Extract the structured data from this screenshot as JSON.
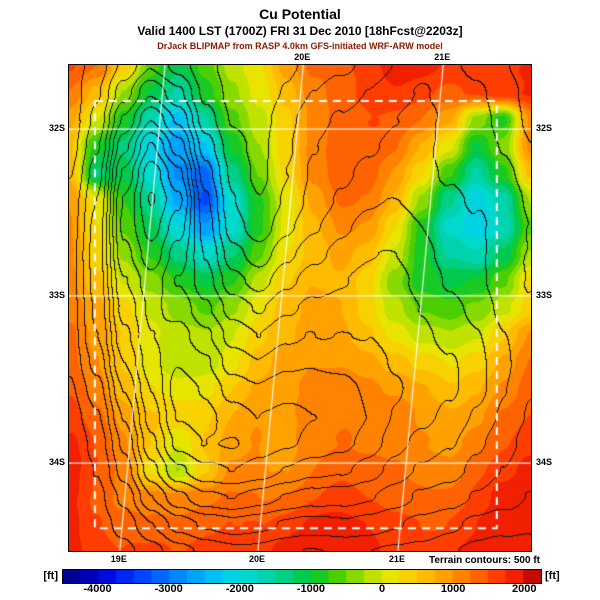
{
  "title": {
    "main": "Cu Potential",
    "line2": "Valid 1400 LST (1700Z) FRI 31 Dec 2010 [18hFcst@2203z]",
    "line3": "DrJack BLIPMAP from RASP 4.0km GFS-initiated WRF-ARW model"
  },
  "axes": {
    "left": [
      {
        "label": "32S",
        "f": 0.132
      },
      {
        "label": "33S",
        "f": 0.475
      },
      {
        "label": "34S",
        "f": 0.819
      }
    ],
    "right": [
      {
        "label": "32S",
        "f": 0.132
      },
      {
        "label": "33S",
        "f": 0.475
      },
      {
        "label": "34S",
        "f": 0.819
      }
    ],
    "top": [
      {
        "label": "20E",
        "f": 0.507
      },
      {
        "label": "21E",
        "f": 0.81
      }
    ],
    "bottom": [
      {
        "label": "19E",
        "f": 0.11
      },
      {
        "label": "20E",
        "f": 0.409
      },
      {
        "label": "21E",
        "f": 0.712
      }
    ]
  },
  "colorbar": {
    "unit_left": "[ft]",
    "unit_right": "[ft]",
    "note": "Terrain contours: 500 ft",
    "min": -4500,
    "max": 2250,
    "step": 250,
    "ticks": [
      -4000,
      -3000,
      -2000,
      -1000,
      0,
      1000,
      2000
    ]
  },
  "chart_data": {
    "type": "heatmap",
    "title": "Cu Potential",
    "units": "ft",
    "value_range": [
      -4500,
      2250
    ],
    "contour_fill_step": 250,
    "terrain_contour_interval_ft": 500,
    "x_axis": {
      "top_ticks": [
        "20E",
        "21E"
      ],
      "bottom_ticks": [
        "19E",
        "20E",
        "21E"
      ]
    },
    "y_axis": {
      "left_ticks": [
        "32S",
        "33S",
        "34S"
      ],
      "right_ticks": [
        "32S",
        "33S",
        "34S"
      ]
    },
    "color_stops": [
      [
        -4500,
        "#000080"
      ],
      [
        -4000,
        "#0000cd"
      ],
      [
        -3500,
        "#0033ff"
      ],
      [
        -3000,
        "#0077ff"
      ],
      [
        -2500,
        "#00b4ff"
      ],
      [
        -2000,
        "#00dcdc"
      ],
      [
        -1500,
        "#00d2a0"
      ],
      [
        -1000,
        "#00c832"
      ],
      [
        -600,
        "#50d000"
      ],
      [
        -200,
        "#b4e100"
      ],
      [
        100,
        "#e6e600"
      ],
      [
        500,
        "#ffc800"
      ],
      [
        900,
        "#ffa000"
      ],
      [
        1300,
        "#ff6e00"
      ],
      [
        1700,
        "#ff3200"
      ],
      [
        2000,
        "#e61400"
      ],
      [
        2250,
        "#a00000"
      ]
    ],
    "grid": {
      "cols": 18,
      "rows": 19,
      "values": [
        [
          1400,
          1100,
          300,
          -700,
          -1100,
          -600,
          -200,
          200,
          900,
          1400,
          1600,
          1700,
          1800,
          1800,
          1700,
          1700,
          1800,
          1800
        ],
        [
          1100,
          500,
          -400,
          -1100,
          -1500,
          -900,
          -400,
          100,
          700,
          1300,
          1600,
          1700,
          1700,
          1600,
          1500,
          1600,
          1700,
          1700
        ],
        [
          800,
          0,
          -900,
          -1600,
          -2300,
          -1600,
          -700,
          -100,
          500,
          1200,
          1500,
          1500,
          1400,
          1300,
          900,
          -300,
          -900,
          900
        ],
        [
          600,
          -800,
          -1200,
          -2000,
          -2600,
          -2400,
          -1100,
          -300,
          400,
          1100,
          1400,
          1300,
          1200,
          800,
          200,
          -1000,
          -400,
          1000
        ],
        [
          700,
          -1200,
          -1000,
          -1800,
          -2800,
          -3300,
          -1500,
          -500,
          300,
          1000,
          1300,
          1200,
          900,
          400,
          -600,
          -1500,
          -800,
          600
        ],
        [
          900,
          200,
          -700,
          -1400,
          -2600,
          -3400,
          -1900,
          -700,
          100,
          800,
          1200,
          1100,
          700,
          -200,
          -1400,
          -2100,
          -1600,
          -200
        ],
        [
          1000,
          300,
          -500,
          -1100,
          -2000,
          -2700,
          -1700,
          -600,
          200,
          700,
          1000,
          900,
          300,
          -800,
          -1900,
          -2300,
          -1800,
          -600
        ],
        [
          1100,
          400,
          -300,
          -800,
          -1400,
          -1800,
          -1100,
          -400,
          300,
          600,
          800,
          600,
          0,
          -900,
          -1700,
          -1900,
          -1300,
          -300
        ],
        [
          1200,
          600,
          -100,
          -500,
          -900,
          -1100,
          -700,
          -100,
          400,
          700,
          700,
          400,
          -300,
          -900,
          -1200,
          -1100,
          -600,
          300
        ],
        [
          1300,
          800,
          200,
          -200,
          -500,
          -600,
          -300,
          100,
          500,
          800,
          800,
          500,
          0,
          -500,
          -700,
          -400,
          0,
          400
        ],
        [
          1400,
          900,
          400,
          0,
          -200,
          -200,
          0,
          300,
          600,
          900,
          900,
          700,
          300,
          -100,
          -200,
          100,
          600,
          1100
        ],
        [
          1400,
          1000,
          500,
          200,
          -100,
          0,
          200,
          500,
          800,
          1000,
          1000,
          900,
          600,
          300,
          200,
          500,
          900,
          1300
        ],
        [
          1500,
          1100,
          700,
          400,
          300,
          300,
          500,
          700,
          900,
          1100,
          1100,
          1000,
          800,
          600,
          500,
          800,
          1100,
          1400
        ],
        [
          1500,
          1200,
          900,
          600,
          500,
          500,
          700,
          900,
          1000,
          1200,
          1200,
          1100,
          1000,
          800,
          800,
          1000,
          1300,
          1500
        ],
        [
          1600,
          1300,
          1000,
          500,
          0,
          500,
          800,
          1000,
          1100,
          1300,
          1300,
          1200,
          1100,
          1000,
          1000,
          1200,
          1400,
          1600
        ],
        [
          1700,
          1400,
          1200,
          200,
          -300,
          400,
          1000,
          1100,
          1200,
          1400,
          1500,
          1400,
          1300,
          1200,
          1200,
          1400,
          1500,
          1700
        ],
        [
          1800,
          1500,
          1300,
          1100,
          1000,
          1100,
          1200,
          1300,
          1400,
          1500,
          1600,
          1500,
          1400,
          1400,
          1400,
          1500,
          1700,
          1800
        ],
        [
          1900,
          1700,
          1500,
          1300,
          1200,
          1300,
          1400,
          1500,
          1600,
          1700,
          1700,
          1700,
          1600,
          1600,
          1600,
          1700,
          1800,
          1900
        ],
        [
          1900,
          1800,
          1600,
          1500,
          1400,
          1500,
          1600,
          1700,
          1800,
          1800,
          1800,
          1800,
          1700,
          1700,
          1800,
          1800,
          1900,
          2000
        ]
      ]
    },
    "terrain": {
      "cols": 18,
      "rows": 19,
      "values": [
        [
          200,
          600,
          1500,
          2500,
          2000,
          1200,
          800,
          600,
          900,
          1200,
          1500,
          1800,
          2000,
          2200,
          2000,
          1800,
          1500,
          1200
        ],
        [
          300,
          900,
          2200,
          3500,
          2800,
          1500,
          900,
          700,
          1000,
          1400,
          1800,
          2100,
          2300,
          2400,
          2200,
          2000,
          1700,
          1400
        ],
        [
          400,
          1200,
          3000,
          4500,
          3500,
          1800,
          1000,
          800,
          1200,
          1600,
          2000,
          2300,
          2500,
          2600,
          2400,
          2100,
          1800,
          1500
        ],
        [
          500,
          1500,
          3800,
          5500,
          4200,
          2200,
          1200,
          900,
          1300,
          1800,
          2200,
          2500,
          2700,
          2700,
          2500,
          2200,
          1900,
          1600
        ],
        [
          600,
          1800,
          4500,
          6200,
          5000,
          2600,
          1400,
          1000,
          1500,
          2000,
          2400,
          2700,
          2800,
          2800,
          2600,
          2300,
          2000,
          1700
        ],
        [
          700,
          2000,
          5000,
          6500,
          5500,
          3000,
          1600,
          1200,
          1700,
          2200,
          2600,
          2900,
          3000,
          2900,
          2700,
          2400,
          2100,
          1800
        ],
        [
          700,
          2200,
          5200,
          6300,
          5200,
          3200,
          1800,
          1400,
          2000,
          2500,
          2900,
          3100,
          3100,
          3000,
          2800,
          2500,
          2200,
          1900
        ],
        [
          800,
          2300,
          5000,
          6000,
          4800,
          3400,
          2200,
          1800,
          2400,
          2900,
          3200,
          3300,
          3300,
          3100,
          2900,
          2600,
          2300,
          2000
        ],
        [
          800,
          2200,
          4600,
          5500,
          4500,
          3600,
          2600,
          2200,
          2800,
          3300,
          3500,
          3600,
          3500,
          3300,
          3000,
          2700,
          2400,
          2100
        ],
        [
          700,
          2000,
          4200,
          5200,
          4800,
          4000,
          3200,
          2800,
          3300,
          3700,
          3900,
          3900,
          3700,
          3500,
          3200,
          2900,
          2500,
          2200
        ],
        [
          600,
          1800,
          3800,
          5000,
          5200,
          4600,
          3800,
          3400,
          3800,
          4100,
          4200,
          4100,
          3900,
          3600,
          3300,
          3000,
          2600,
          2300
        ],
        [
          500,
          1500,
          3400,
          4800,
          5500,
          5200,
          4400,
          4000,
          4300,
          4500,
          4500,
          4300,
          4000,
          3700,
          3400,
          3000,
          2600,
          2200
        ],
        [
          400,
          1200,
          3000,
          4500,
          5800,
          5600,
          5000,
          4600,
          4800,
          4800,
          4700,
          4400,
          4100,
          3800,
          3400,
          3000,
          2500,
          2100
        ],
        [
          300,
          1000,
          2600,
          4200,
          5500,
          5800,
          5400,
          5000,
          5000,
          4900,
          4700,
          4400,
          4000,
          3700,
          3300,
          2800,
          2400,
          2000
        ],
        [
          200,
          800,
          2200,
          3800,
          5000,
          5500,
          5600,
          5200,
          5000,
          4800,
          4500,
          4200,
          3800,
          3500,
          3100,
          2600,
          2200,
          1800
        ],
        [
          200,
          600,
          1800,
          3200,
          4200,
          4800,
          5000,
          4800,
          4500,
          4200,
          4000,
          3700,
          3400,
          3100,
          2800,
          2400,
          2000,
          1600
        ],
        [
          100,
          400,
          1200,
          2400,
          3200,
          3800,
          4000,
          3800,
          3600,
          3400,
          3200,
          3000,
          2800,
          2500,
          2300,
          2000,
          1700,
          1300
        ],
        [
          100,
          300,
          800,
          1500,
          2200,
          2600,
          2800,
          2700,
          2600,
          2500,
          2400,
          2200,
          2000,
          1800,
          1600,
          1400,
          1200,
          1000
        ],
        [
          0,
          200,
          500,
          900,
          1400,
          1700,
          1800,
          1800,
          1700,
          1600,
          1500,
          1400,
          1300,
          1200,
          1000,
          900,
          800,
          600
        ]
      ]
    },
    "layout": {
      "meridians": [
        {
          "fb": 0.11,
          "ft": 0.208
        },
        {
          "fb": 0.409,
          "ft": 0.507
        },
        {
          "fb": 0.712,
          "ft": 0.81
        }
      ],
      "parallels": [
        0.132,
        0.475,
        0.819
      ],
      "domain_box": {
        "x0": 0.056,
        "y0": 0.074,
        "x1": 0.926,
        "y1": 0.953
      },
      "grid_on": true,
      "legend_position": "bottom"
    }
  }
}
